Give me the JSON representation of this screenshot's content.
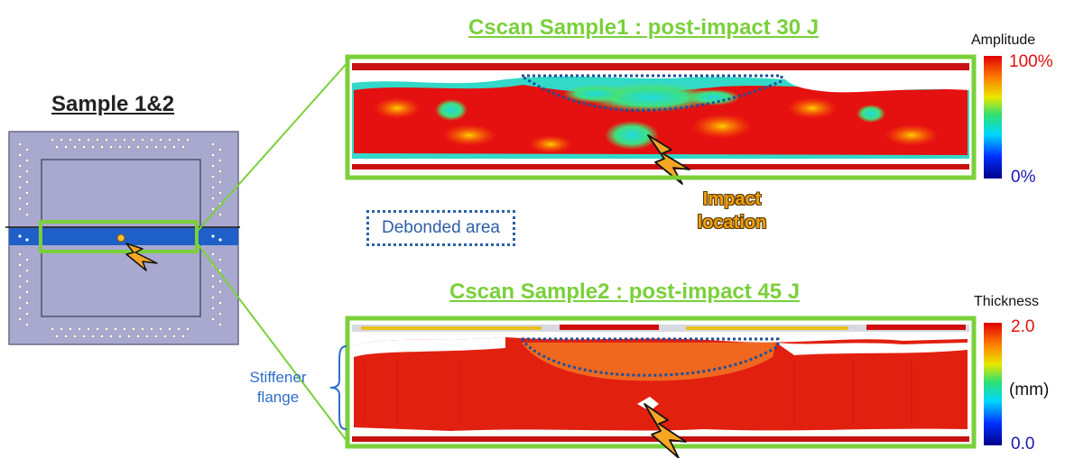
{
  "sample": {
    "title": "Sample 1&2"
  },
  "scan1": {
    "title": "Cscan Sample1 : post-impact 30 J"
  },
  "scan2": {
    "title": "Cscan Sample2 : post-impact 45 J"
  },
  "colorbar1": {
    "label": "Amplitude",
    "max": "100%",
    "min": "0%"
  },
  "colorbar2": {
    "label": "Thickness",
    "max": "2.0",
    "unit": "(mm)",
    "min": "0.0"
  },
  "legend": {
    "debonded": "Debonded area"
  },
  "impact": {
    "line1": "Impact",
    "line2": "location"
  },
  "stiffener": {
    "line1": "Stiffener",
    "line2": "flange"
  },
  "colors": {
    "frame_green": "#7ad03a",
    "debond_blue": "#2e5fa3",
    "plate": "#a8a8cc",
    "stiffener": "#1f5fc8",
    "impact_orange": "#f5a623"
  }
}
